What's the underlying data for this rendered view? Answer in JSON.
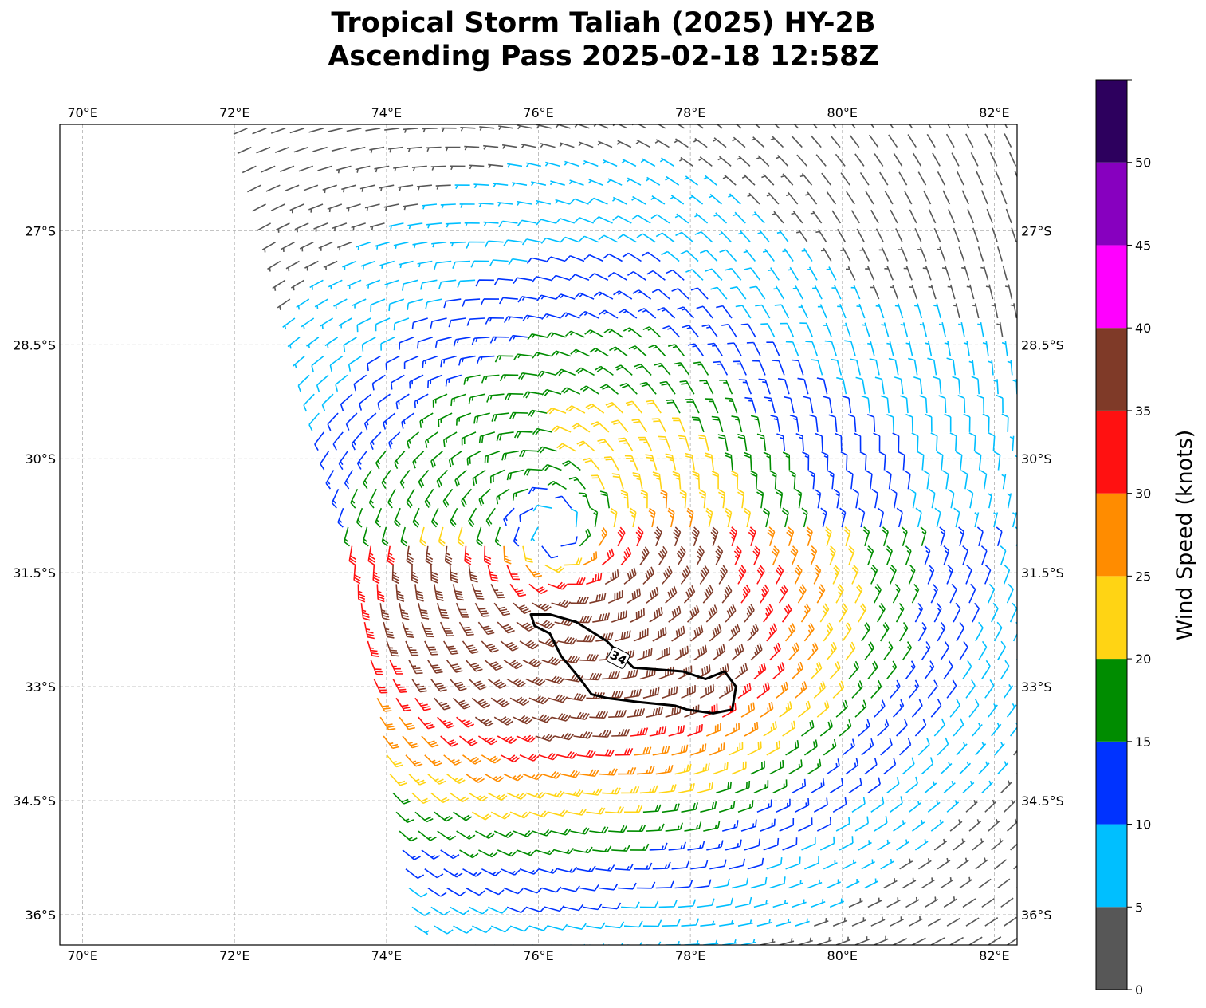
{
  "title_line1": "Tropical Storm Taliah (2025) HY-2B",
  "title_line2": "Ascending Pass 2025-02-18 12:58Z",
  "chart_data": {
    "type": "wind_barbs",
    "x_ticks": [
      {
        "value": 70,
        "label": "70°E"
      },
      {
        "value": 72,
        "label": "72°E"
      },
      {
        "value": 74,
        "label": "74°E"
      },
      {
        "value": 76,
        "label": "76°E"
      },
      {
        "value": 78,
        "label": "78°E"
      },
      {
        "value": 80,
        "label": "80°E"
      },
      {
        "value": 82,
        "label": "82°E"
      }
    ],
    "y_ticks": [
      {
        "value": -27,
        "label": "27°S"
      },
      {
        "value": -28.5,
        "label": "28.5°S"
      },
      {
        "value": -30,
        "label": "30°S"
      },
      {
        "value": -31.5,
        "label": "31.5°S"
      },
      {
        "value": -33,
        "label": "33°S"
      },
      {
        "value": -34.5,
        "label": "34.5°S"
      },
      {
        "value": -36,
        "label": "36°S"
      }
    ],
    "xlim": [
      69.7,
      82.3
    ],
    "ylim": [
      -36.4,
      -25.6
    ],
    "grid": true,
    "storm_center": {
      "lon": 76.2,
      "lat": -30.95
    },
    "peak_wind_center": {
      "lon": 77.1,
      "lat": -32.8
    },
    "swath_west_edge": [
      [
        72.05,
        -25.7
      ],
      [
        73.4,
        -31.0
      ],
      [
        74.3,
        -36.4
      ]
    ],
    "contour": {
      "level": 34,
      "label": "34",
      "path": [
        [
          75.9,
          -32.05
        ],
        [
          76.15,
          -32.05
        ],
        [
          76.5,
          -32.15
        ],
        [
          76.9,
          -32.4
        ],
        [
          77.25,
          -32.75
        ],
        [
          77.9,
          -32.8
        ],
        [
          78.2,
          -32.9
        ],
        [
          78.45,
          -32.8
        ],
        [
          78.6,
          -33.0
        ],
        [
          78.55,
          -33.3
        ],
        [
          78.3,
          -33.35
        ],
        [
          77.95,
          -33.3
        ],
        [
          77.8,
          -33.25
        ],
        [
          77.3,
          -33.2
        ],
        [
          76.9,
          -33.15
        ],
        [
          76.7,
          -33.1
        ],
        [
          76.55,
          -32.9
        ],
        [
          76.3,
          -32.6
        ],
        [
          76.15,
          -32.3
        ],
        [
          75.95,
          -32.2
        ],
        [
          75.9,
          -32.05
        ]
      ]
    },
    "colorbar": {
      "label": "Wind Speed (knots)",
      "ticks": [
        {
          "value": 0,
          "label": "0"
        },
        {
          "value": 5,
          "label": "5"
        },
        {
          "value": 10,
          "label": "10"
        },
        {
          "value": 15,
          "label": "15"
        },
        {
          "value": 20,
          "label": "20"
        },
        {
          "value": 25,
          "label": "25"
        },
        {
          "value": 30,
          "label": "30"
        },
        {
          "value": 35,
          "label": "35"
        },
        {
          "value": 40,
          "label": "40"
        },
        {
          "value": 45,
          "label": "45"
        },
        {
          "value": 50,
          "label": "50"
        }
      ],
      "range": [
        0,
        55
      ],
      "bins": [
        {
          "min": 0,
          "max": 5,
          "color": "#575757"
        },
        {
          "min": 5,
          "max": 10,
          "color": "#00bfff"
        },
        {
          "min": 10,
          "max": 15,
          "color": "#0033ff"
        },
        {
          "min": 15,
          "max": 20,
          "color": "#008c00"
        },
        {
          "min": 20,
          "max": 25,
          "color": "#ffd414"
        },
        {
          "min": 25,
          "max": 30,
          "color": "#ff8c00"
        },
        {
          "min": 30,
          "max": 35,
          "color": "#ff1111"
        },
        {
          "min": 35,
          "max": 40,
          "color": "#7f3a28"
        },
        {
          "min": 40,
          "max": 45,
          "color": "#ff00ff"
        },
        {
          "min": 45,
          "max": 50,
          "color": "#8700bf"
        },
        {
          "min": 50,
          "max": 55,
          "color": "#2d005e"
        }
      ]
    }
  }
}
